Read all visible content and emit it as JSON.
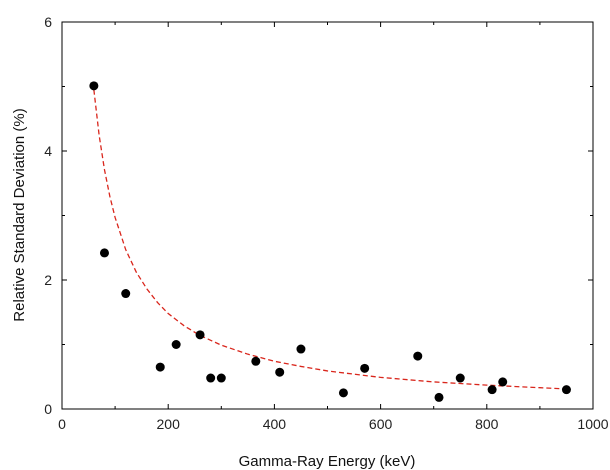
{
  "chart_data": {
    "type": "scatter",
    "xlabel": "Gamma-Ray Energy (keV)",
    "ylabel": "Relative Standard Deviation (%)",
    "xlim": [
      0,
      1000
    ],
    "ylim": [
      0,
      6
    ],
    "xticks": [
      "0",
      "200",
      "400",
      "600",
      "800",
      "1000"
    ],
    "yticks": [
      "0",
      "2",
      "4",
      "6"
    ],
    "grid": false,
    "series": [
      {
        "kind": "scatter",
        "color": "#000000",
        "points": [
          [
            60,
            5.01
          ],
          [
            80,
            2.42
          ],
          [
            120,
            1.79
          ],
          [
            185,
            0.65
          ],
          [
            215,
            1.0
          ],
          [
            260,
            1.15
          ],
          [
            280,
            0.48
          ],
          [
            300,
            0.48
          ],
          [
            365,
            0.74
          ],
          [
            410,
            0.57
          ],
          [
            450,
            0.93
          ],
          [
            530,
            0.25
          ],
          [
            570,
            0.63
          ],
          [
            670,
            0.82
          ],
          [
            710,
            0.18
          ],
          [
            750,
            0.48
          ],
          [
            810,
            0.3
          ],
          [
            830,
            0.42
          ],
          [
            950,
            0.3
          ]
        ]
      },
      {
        "kind": "fit-line",
        "style": "dashed",
        "color": "#d9261c",
        "points": [
          [
            60,
            4.95
          ],
          [
            70,
            4.24
          ],
          [
            80,
            3.71
          ],
          [
            90,
            3.3
          ],
          [
            100,
            2.97
          ],
          [
            120,
            2.47
          ],
          [
            140,
            2.12
          ],
          [
            160,
            1.86
          ],
          [
            180,
            1.65
          ],
          [
            200,
            1.48
          ],
          [
            230,
            1.29
          ],
          [
            260,
            1.14
          ],
          [
            300,
            0.99
          ],
          [
            350,
            0.85
          ],
          [
            400,
            0.74
          ],
          [
            450,
            0.66
          ],
          [
            500,
            0.59
          ],
          [
            600,
            0.49
          ],
          [
            700,
            0.42
          ],
          [
            800,
            0.37
          ],
          [
            900,
            0.33
          ],
          [
            950,
            0.31
          ]
        ]
      }
    ]
  }
}
